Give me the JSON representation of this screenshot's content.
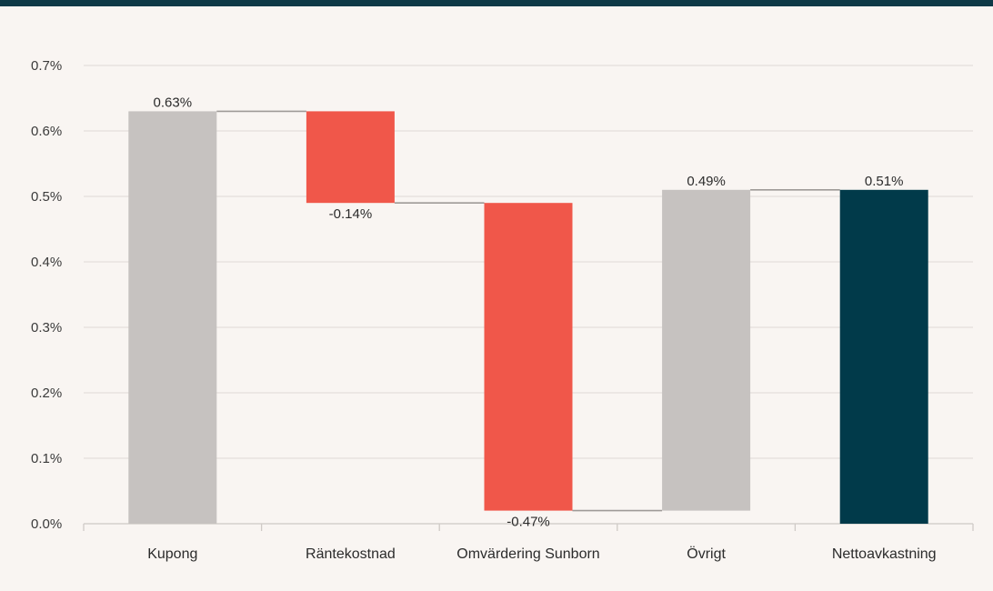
{
  "colors": {
    "background": "#f9f5f2",
    "header_bar": "#0e3a47",
    "base_bar": "#c6c2c0",
    "decrease_bar": "#f0574a",
    "total_bar": "#013a4a",
    "grid": "#e4dfdb",
    "connector": "#9e9a97"
  },
  "chart_data": {
    "type": "bar",
    "subtype": "waterfall",
    "categories": [
      "Kupong",
      "Räntekostnad",
      "Omvärdering Sunborn",
      "Övrigt",
      "Nettoavkastning"
    ],
    "values": [
      0.63,
      -0.14,
      -0.47,
      0.49,
      0.51
    ],
    "data_labels": [
      "0.63%",
      "-0.14%",
      "-0.47%",
      "0.49%",
      "0.51%"
    ],
    "bar_kinds": [
      "base",
      "decrease",
      "decrease",
      "increase",
      "total"
    ],
    "ylim": [
      0,
      0.7
    ],
    "y_ticks": [
      0,
      0.1,
      0.2,
      0.3,
      0.4,
      0.5,
      0.6,
      0.7
    ],
    "y_tick_labels": [
      "0.0%",
      "0.1%",
      "0.2%",
      "0.3%",
      "0.4%",
      "0.5%",
      "0.6%",
      "0.7%"
    ],
    "grid": true,
    "legend": "none"
  }
}
